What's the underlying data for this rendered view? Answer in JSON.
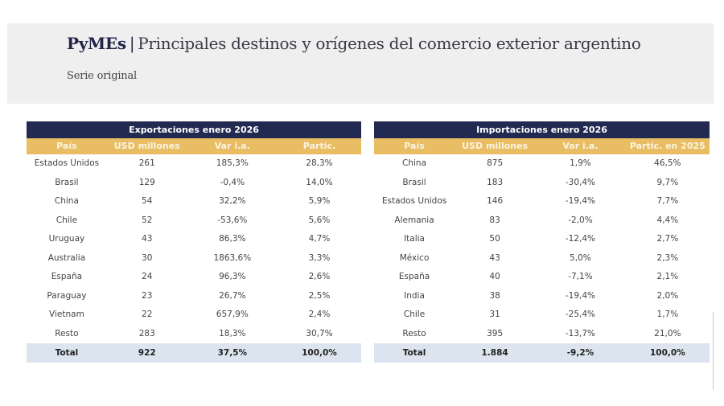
{
  "header": {
    "brand": "PyMEs",
    "separator": "|",
    "title": "Principales destinos y orígenes del comercio exterior argentino",
    "subtitle": "Serie original"
  },
  "exports": {
    "title": "Exportaciones enero 2026",
    "columns": [
      "País",
      "USD millones",
      "Var i.a.",
      "Partic."
    ],
    "rows": [
      [
        "Estados Unidos",
        "261",
        "185,3%",
        "28,3%"
      ],
      [
        "Brasil",
        "129",
        "-0,4%",
        "14,0%"
      ],
      [
        "China",
        "54",
        "32,2%",
        "5,9%"
      ],
      [
        "Chile",
        "52",
        "-53,6%",
        "5,6%"
      ],
      [
        "Uruguay",
        "43",
        "86,3%",
        "4,7%"
      ],
      [
        "Australia",
        "30",
        "1863,6%",
        "3,3%"
      ],
      [
        "España",
        "24",
        "96,3%",
        "2,6%"
      ],
      [
        "Paraguay",
        "23",
        "26,7%",
        "2,5%"
      ],
      [
        "Vietnam",
        "22",
        "657,9%",
        "2,4%"
      ],
      [
        "Resto",
        "283",
        "18,3%",
        "30,7%"
      ]
    ],
    "total": [
      "Total",
      "922",
      "37,5%",
      "100,0%"
    ]
  },
  "imports": {
    "title": "Importaciones enero 2026",
    "columns": [
      "País",
      "USD millones",
      "Var i.a.",
      "Partic. en 2025"
    ],
    "rows": [
      [
        "China",
        "875",
        "1,9%",
        "46,5%"
      ],
      [
        "Brasil",
        "183",
        "-30,4%",
        "9,7%"
      ],
      [
        "Estados Unidos",
        "146",
        "-19,4%",
        "7,7%"
      ],
      [
        "Alemania",
        "83",
        "-2,0%",
        "4,4%"
      ],
      [
        "Italia",
        "50",
        "-12,4%",
        "2,7%"
      ],
      [
        "México",
        "43",
        "5,0%",
        "2,3%"
      ],
      [
        "España",
        "40",
        "-7,1%",
        "2,1%"
      ],
      [
        "India",
        "38",
        "-19,4%",
        "2,0%"
      ],
      [
        "Chile",
        "31",
        "-25,4%",
        "1,7%"
      ],
      [
        "Resto",
        "395",
        "-13,7%",
        "21,0%"
      ]
    ],
    "total": [
      "Total",
      "1.884",
      "-9,2%",
      "100,0%"
    ]
  },
  "colors": {
    "navy": "#232a52",
    "gold": "#e8bd63",
    "total_bg": "#dce5ef",
    "header_bg": "#efefef"
  }
}
